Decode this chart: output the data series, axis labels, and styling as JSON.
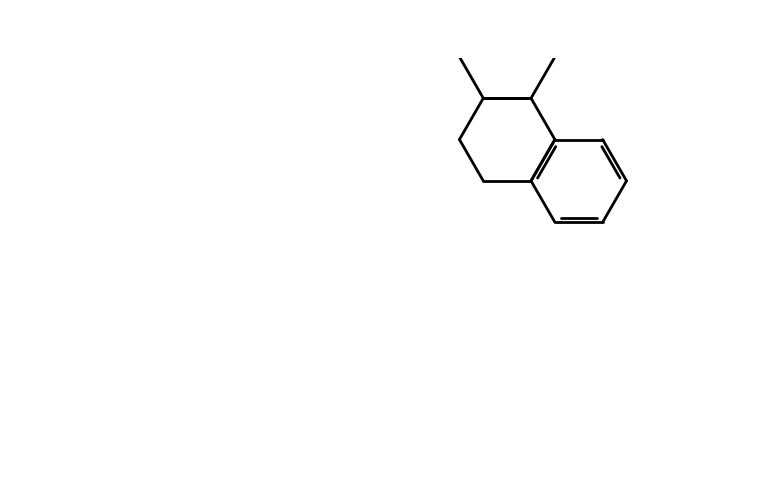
{
  "bg": "#ffffff",
  "lc": "#000000",
  "lw": 2.0,
  "fs": 17,
  "fs_ipr": 17
}
